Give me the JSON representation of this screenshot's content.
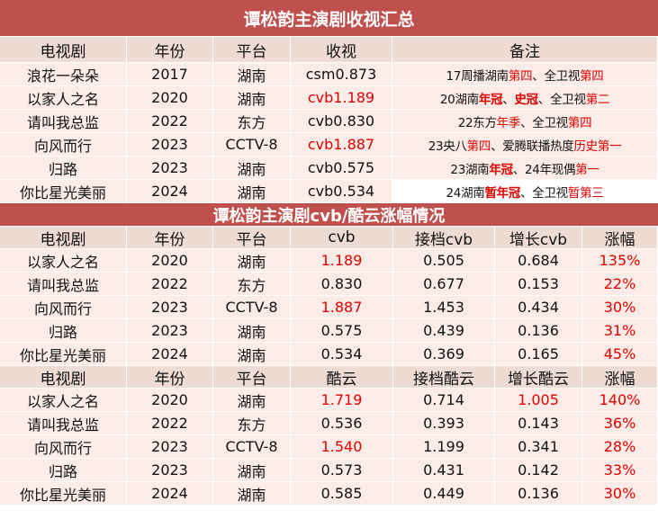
{
  "section1": {
    "title": "谭松韵主演剧收视汇总",
    "headers": [
      "电视剧",
      "年份",
      "平台",
      "收视",
      "备注"
    ],
    "rows": [
      {
        "drama": "浪花一朵朵",
        "year": "2017",
        "platform": "湖南",
        "rating": "csm0.873",
        "rating_red": false,
        "note": [
          {
            "t": "17周播湖南"
          },
          {
            "t": "第四",
            "c": "red"
          },
          {
            "t": "、全卫视"
          },
          {
            "t": "第四",
            "c": "red"
          }
        ]
      },
      {
        "drama": "以家人之名",
        "year": "2020",
        "platform": "湖南",
        "rating": "cvb1.189",
        "rating_red": true,
        "note": [
          {
            "t": "20湖南"
          },
          {
            "t": "年冠",
            "c": "red",
            "b": true
          },
          {
            "t": "、"
          },
          {
            "t": "史冠",
            "c": "red",
            "b": true
          },
          {
            "t": "、全卫视"
          },
          {
            "t": "第二",
            "c": "red"
          }
        ]
      },
      {
        "drama": "请叫我总监",
        "year": "2022",
        "platform": "东方",
        "rating": "cvb0.830",
        "rating_red": false,
        "note": [
          {
            "t": "22东方"
          },
          {
            "t": "年季",
            "c": "red"
          },
          {
            "t": "、全卫视"
          },
          {
            "t": "第四",
            "c": "red"
          }
        ]
      },
      {
        "drama": "向风而行",
        "year": "2023",
        "platform": "CCTV-8",
        "rating": "cvb1.887",
        "rating_red": true,
        "note": [
          {
            "t": "23央八"
          },
          {
            "t": "第四",
            "c": "red"
          },
          {
            "t": "、爱腾联播热度"
          },
          {
            "t": "历史第一",
            "c": "red"
          }
        ]
      },
      {
        "drama": "归路",
        "year": "2023",
        "platform": "湖南",
        "rating": "cvb0.575",
        "rating_red": false,
        "note": [
          {
            "t": "23湖南"
          },
          {
            "t": "年冠",
            "c": "red",
            "b": true
          },
          {
            "t": "、24年现偶"
          },
          {
            "t": "第一",
            "c": "red"
          }
        ]
      },
      {
        "drama": "你比星光美丽",
        "year": "2024",
        "platform": "湖南",
        "rating": "cvb0.534",
        "rating_red": false,
        "note": [
          {
            "t": "24湖南"
          },
          {
            "t": "暂年冠",
            "c": "red",
            "b": true
          },
          {
            "t": "、全卫视"
          },
          {
            "t": "暂第三",
            "c": "red"
          }
        ]
      }
    ]
  },
  "section2": {
    "title": "谭松韵主演剧cvb/酷云涨幅情况",
    "headers": [
      "电视剧",
      "年份",
      "平台",
      "cvb",
      "接档cvb",
      "增长cvb",
      "涨幅"
    ],
    "rows": [
      {
        "drama": "以家人之名",
        "year": "2020",
        "platform": "湖南",
        "value": "1.189",
        "value_red": true,
        "prev": "0.505",
        "growth": "0.684",
        "growth_red": false,
        "pct": "135%"
      },
      {
        "drama": "请叫我总监",
        "year": "2022",
        "platform": "东方",
        "value": "0.830",
        "value_red": false,
        "prev": "0.677",
        "growth": "0.153",
        "growth_red": false,
        "pct": "22%"
      },
      {
        "drama": "向风而行",
        "year": "2023",
        "platform": "CCTV-8",
        "value": "1.887",
        "value_red": true,
        "prev": "1.453",
        "growth": "0.434",
        "growth_red": false,
        "pct": "30%"
      },
      {
        "drama": "归路",
        "year": "2023",
        "platform": "湖南",
        "value": "0.575",
        "value_red": false,
        "prev": "0.439",
        "growth": "0.136",
        "growth_red": false,
        "pct": "31%"
      },
      {
        "drama": "你比星光美丽",
        "year": "2024",
        "platform": "湖南",
        "value": "0.534",
        "value_red": false,
        "prev": "0.369",
        "growth": "0.165",
        "growth_red": false,
        "pct": "45%"
      }
    ]
  },
  "section3": {
    "headers": [
      "电视剧",
      "年份",
      "平台",
      "酷云",
      "接档酷云",
      "增长酷云",
      "涨幅"
    ],
    "rows": [
      {
        "drama": "以家人之名",
        "year": "2020",
        "platform": "湖南",
        "value": "1.719",
        "value_red": true,
        "prev": "0.714",
        "growth": "1.005",
        "growth_red": true,
        "pct": "140%"
      },
      {
        "drama": "请叫我总监",
        "year": "2022",
        "platform": "东方",
        "value": "0.536",
        "value_red": false,
        "prev": "0.393",
        "growth": "0.143",
        "growth_red": false,
        "pct": "36%"
      },
      {
        "drama": "向风而行",
        "year": "2023",
        "platform": "CCTV-8",
        "value": "1.540",
        "value_red": true,
        "prev": "1.199",
        "growth": "0.341",
        "growth_red": false,
        "pct": "28%"
      },
      {
        "drama": "归路",
        "year": "2023",
        "platform": "湖南",
        "value": "0.573",
        "value_red": false,
        "prev": "0.431",
        "growth": "0.142",
        "growth_red": false,
        "pct": "33%"
      },
      {
        "drama": "你比星光美丽",
        "year": "2024",
        "platform": "湖南",
        "value": "0.585",
        "value_red": false,
        "prev": "0.449",
        "growth": "0.136",
        "growth_red": false,
        "pct": "30%"
      }
    ]
  },
  "colors": {
    "title_bg": "#c0504d",
    "header_bg": "#eedbd4",
    "row_bg": "#fbece7",
    "red": "#e00000"
  }
}
